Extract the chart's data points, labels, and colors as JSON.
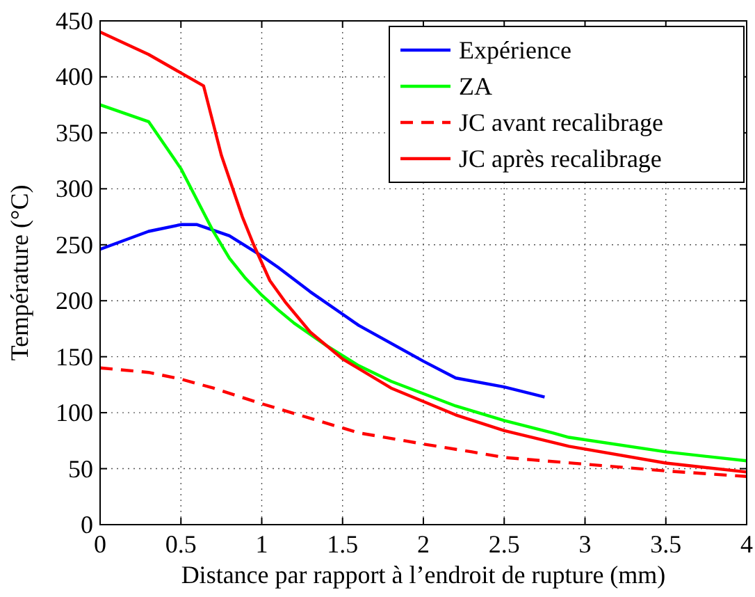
{
  "chart_data": {
    "type": "line",
    "xlabel": "Distance par rapport à l’endroit de rupture (mm)",
    "ylabel": "Température (°C)",
    "xlim": [
      0,
      4
    ],
    "ylim": [
      0,
      450
    ],
    "xticks": [
      0,
      0.5,
      1,
      1.5,
      2,
      2.5,
      3,
      3.5,
      4
    ],
    "yticks": [
      0,
      50,
      100,
      150,
      200,
      250,
      300,
      350,
      400,
      450
    ],
    "grid": true,
    "legend": "top right",
    "series": [
      {
        "name": "Expérience",
        "color": "#0000ff",
        "line_style": "solid",
        "x": [
          0,
          0.3,
          0.5,
          0.6,
          0.8,
          1,
          1.1,
          1.3,
          1.5,
          1.6,
          2,
          2.2,
          2.5,
          2.75
        ],
        "values": [
          246,
          262,
          268,
          268,
          258,
          240,
          230,
          208,
          188,
          178,
          146,
          131,
          123,
          114
        ]
      },
      {
        "name": "ZA",
        "color": "#00ff00",
        "line_style": "solid",
        "x": [
          0,
          0.3,
          0.5,
          0.6,
          0.7,
          0.8,
          0.9,
          1,
          1.1,
          1.2,
          1.4,
          1.6,
          1.8,
          2,
          2.2,
          2.5,
          2.8,
          2.9,
          3.5,
          4
        ],
        "values": [
          375,
          360,
          318,
          290,
          262,
          238,
          220,
          205,
          192,
          180,
          160,
          142,
          128,
          117,
          106,
          93,
          82,
          78,
          65,
          57
        ]
      },
      {
        "name": "JC avant recalibrage",
        "color": "#ff0000",
        "line_style": "dashed",
        "x": [
          0,
          0.3,
          0.5,
          0.7,
          1,
          1.3,
          1.6,
          2,
          2.3,
          2.5,
          3,
          3.5,
          4
        ],
        "values": [
          140,
          136,
          130,
          122,
          108,
          95,
          82,
          72,
          65,
          60,
          54,
          48,
          43
        ]
      },
      {
        "name": "JC après recalibrage",
        "color": "#ff0000",
        "line_style": "solid",
        "x": [
          0,
          0.3,
          0.64,
          0.75,
          0.88,
          0.95,
          1.05,
          1.15,
          1.3,
          1.5,
          1.8,
          2,
          2.2,
          2.5,
          2.9,
          3.5,
          4
        ],
        "values": [
          440,
          420,
          392,
          330,
          275,
          250,
          218,
          198,
          172,
          148,
          122,
          110,
          98,
          84,
          70,
          55,
          47
        ]
      }
    ]
  }
}
